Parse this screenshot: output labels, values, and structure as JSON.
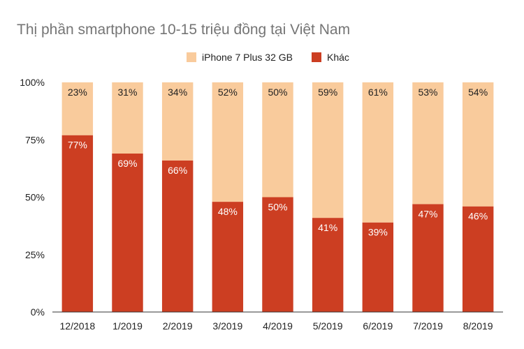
{
  "chart_data": {
    "type": "bar",
    "stacked": true,
    "title": "Thị phần smartphone 10-15 triệu đồng tại Việt Nam",
    "xlabel": "",
    "ylabel": "",
    "ylim": [
      0,
      100
    ],
    "y_ticks": [
      "0%",
      "25%",
      "50%",
      "75%",
      "100%"
    ],
    "categories": [
      "12/2018",
      "1/2019",
      "2/2019",
      "3/2019",
      "4/2019",
      "5/2019",
      "6/2019",
      "7/2019",
      "8/2019"
    ],
    "legend_position": "top",
    "grid": false,
    "series": [
      {
        "name": "Khác",
        "color": "#cc3e22",
        "label_color": "#ffffff",
        "values": [
          77,
          69,
          66,
          48,
          50,
          41,
          39,
          47,
          46
        ],
        "labels": [
          "77%",
          "69%",
          "66%",
          "48%",
          "50%",
          "41%",
          "39%",
          "47%",
          "46%"
        ]
      },
      {
        "name": "iPhone 7 Plus 32 GB",
        "color": "#f9cb9c",
        "label_color": "#222222",
        "values": [
          23,
          31,
          34,
          52,
          50,
          59,
          61,
          53,
          54
        ],
        "labels": [
          "23%",
          "31%",
          "34%",
          "52%",
          "50%",
          "59%",
          "61%",
          "53%",
          "54%"
        ]
      }
    ],
    "legend_order": [
      "iPhone 7 Plus 32 GB",
      "Khác"
    ]
  }
}
